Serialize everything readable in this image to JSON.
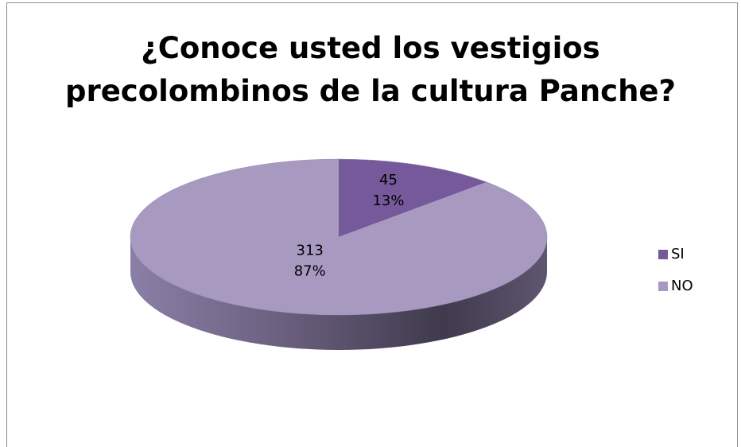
{
  "chart_data": {
    "type": "pie",
    "title_lines": [
      "¿Conoce usted los vestigios",
      "precolombinos de la cultura Panche?"
    ],
    "categories": [
      "SI",
      "NO"
    ],
    "values": [
      45,
      313
    ],
    "percent_labels": [
      "13%",
      "87%"
    ],
    "value_labels": [
      "45",
      "313"
    ],
    "colors": [
      "#76599a",
      "#a899c1"
    ],
    "side_colors": [
      "#5b4377",
      "#6e6488"
    ],
    "legend_position": "right",
    "style": "3d"
  }
}
